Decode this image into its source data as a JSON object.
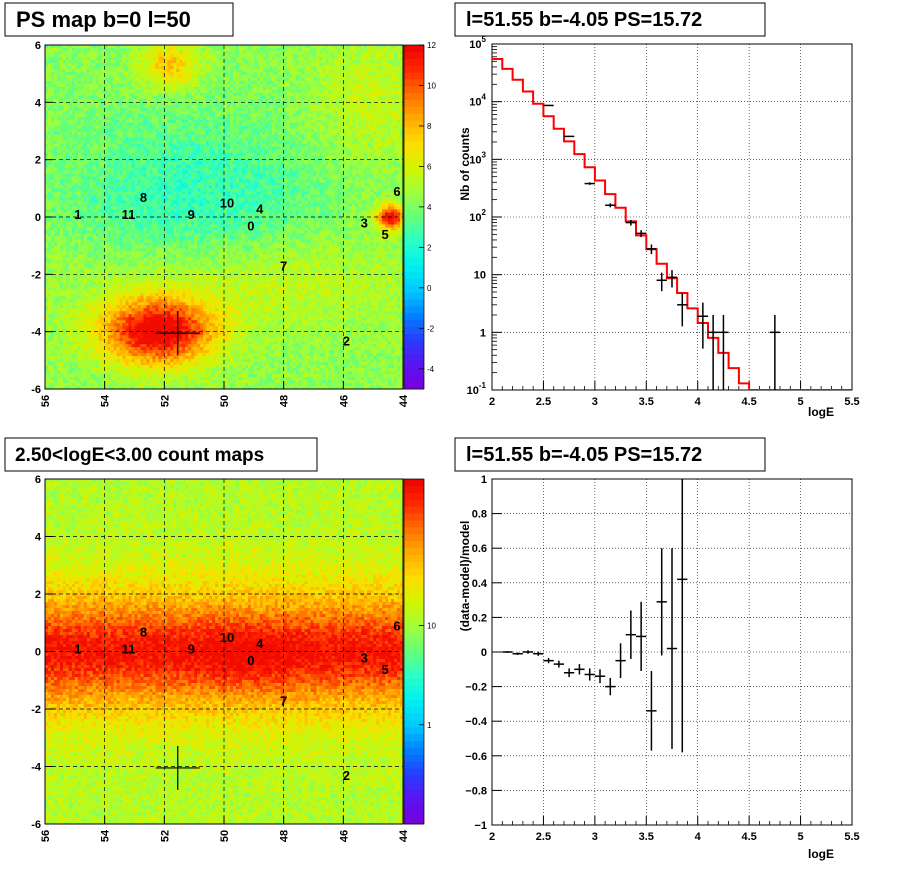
{
  "panels": {
    "ps_map": {
      "title": "PS map b=0 l=50",
      "x_ticks": [
        "56",
        "54",
        "52",
        "50",
        "48",
        "46",
        "44"
      ],
      "y_ticks": [
        "6",
        "4",
        "2",
        "0",
        "-2",
        "-4",
        "-6"
      ],
      "colorbar_ticks": [
        "12",
        "10",
        "8",
        "6",
        "4",
        "2",
        "0",
        "-2",
        "-4"
      ]
    },
    "spectrum": {
      "title": "l=51.55 b=-4.05 PS=15.72",
      "ylabel": "Nb of counts",
      "xlabel": "logE",
      "x_ticks": [
        "2",
        "2.5",
        "3",
        "3.5",
        "4",
        "4.5",
        "5",
        "5.5"
      ],
      "y_tick_ones": [
        "1",
        "10"
      ]
    },
    "count_map": {
      "title": "2.50<logE<3.00 count maps",
      "x_ticks": [
        "56",
        "54",
        "52",
        "50",
        "48",
        "46",
        "44"
      ],
      "y_ticks": [
        "6",
        "4",
        "2",
        "0",
        "-2",
        "-4",
        "-6"
      ],
      "colorbar_ticks": [
        "10",
        "1"
      ]
    },
    "residual": {
      "title": "l=51.55 b=-4.05 PS=15.72",
      "ylabel": "(data-model)/model",
      "xlabel": "logE",
      "x_ticks": [
        "2",
        "2.5",
        "3",
        "3.5",
        "4",
        "4.5",
        "5",
        "5.5"
      ],
      "y_ticks": [
        "1",
        "0.8",
        "0.6",
        "0.4",
        "0.2",
        "0",
        "−0.2",
        "−0.4",
        "−0.6",
        "−0.8",
        "−1"
      ]
    }
  },
  "sources": [
    {
      "label": "0",
      "l": 49.1,
      "b": -0.3
    },
    {
      "label": "1",
      "l": 54.9,
      "b": 0.1
    },
    {
      "label": "2",
      "l": 45.9,
      "b": -4.3
    },
    {
      "label": "3",
      "l": 45.3,
      "b": -0.2
    },
    {
      "label": "4",
      "l": 48.8,
      "b": 0.3
    },
    {
      "label": "5",
      "l": 44.6,
      "b": -0.6
    },
    {
      "label": "6",
      "l": 44.2,
      "b": 0.9
    },
    {
      "label": "7",
      "l": 48.0,
      "b": -1.7
    },
    {
      "label": "8",
      "l": 52.7,
      "b": 0.7
    },
    {
      "label": "9",
      "l": 51.1,
      "b": 0.1
    },
    {
      "label": "10",
      "l": 49.9,
      "b": 0.5
    },
    {
      "label": "11",
      "l": 53.2,
      "b": 0.1
    }
  ],
  "colors": {
    "model_line": "#ff0000",
    "data_points": "#000000",
    "grid": "#000000"
  },
  "chart_data": [
    {
      "type": "heatmap",
      "title": "PS map b=0 l=50",
      "xlabel": "",
      "ylabel": "",
      "xlim": [
        56,
        44
      ],
      "ylim": [
        -6,
        6
      ],
      "zlim": [
        -5,
        12
      ],
      "grid": true,
      "marker": {
        "l": 51.55,
        "b": -4.05
      }
    },
    {
      "type": "line",
      "title": "l=51.55 b=-4.05 PS=15.72",
      "xlabel": "logE",
      "ylabel": "Nb of counts",
      "xlim": [
        2,
        5.5
      ],
      "ylim": [
        0.1,
        100000
      ],
      "y_scale": "log",
      "grid": true,
      "series": [
        {
          "x": [
            2.05,
            2.15,
            2.25,
            2.35,
            2.45,
            2.55,
            2.65,
            2.75,
            2.85,
            2.95,
            3.05,
            3.15,
            3.25,
            3.35,
            3.45,
            3.55,
            3.65,
            3.75,
            3.85,
            3.95,
            4.05,
            4.15,
            4.25,
            4.35,
            4.45,
            4.55,
            4.65,
            4.75,
            4.85,
            4.95,
            5.05,
            5.15,
            5.25,
            5.35,
            5.45
          ],
          "values": [
            55000,
            37000,
            24000,
            15000,
            9200,
            5600,
            3400,
            2050,
            1230,
            730,
            430,
            250,
            145,
            84,
            48,
            27.5,
            15.5,
            8.7,
            4.8,
            2.6,
            1.45,
            0.8,
            0.44,
            0.24,
            0.13,
            0.1,
            0.1,
            0.1,
            0.1,
            0.1,
            0.1,
            0.1,
            0.1,
            0.1,
            0.1
          ]
        },
        {
          "x": [
            2.55,
            2.75,
            2.95,
            3.15,
            3.35,
            3.45,
            3.55,
            3.65,
            3.75,
            3.85,
            4.05,
            4.15,
            4.25,
            4.75
          ],
          "values": [
            8600,
            2500,
            380,
            160,
            80,
            52,
            28,
            8,
            9,
            3,
            1.9,
            1,
            1,
            1
          ]
        }
      ]
    },
    {
      "type": "heatmap",
      "title": "2.50<logE<3.00 count maps",
      "xlabel": "",
      "ylabel": "",
      "xlim": [
        56,
        44
      ],
      "ylim": [
        -6,
        6
      ],
      "z_scale": "log",
      "zlim": [
        0.1,
        300
      ],
      "grid": true,
      "marker": {
        "l": 51.55,
        "b": -4.05
      }
    },
    {
      "type": "scatter",
      "title": "l=51.55 b=-4.05 PS=15.72",
      "xlabel": "logE",
      "ylabel": "(data-model)/model",
      "xlim": [
        2,
        5.5
      ],
      "ylim": [
        -1,
        1
      ],
      "grid": true,
      "series": [
        {
          "x": [
            2.15,
            2.25,
            2.35,
            2.45,
            2.55,
            2.65,
            2.75,
            2.85,
            2.95,
            3.05,
            3.15,
            3.25,
            3.35,
            3.45,
            3.55,
            3.65,
            3.75,
            3.85
          ],
          "values": [
            0.0,
            -0.01,
            0.0,
            -0.01,
            -0.05,
            -0.07,
            -0.12,
            -0.1,
            -0.13,
            -0.14,
            -0.2,
            -0.05,
            0.1,
            0.09,
            -0.34,
            0.29,
            0.02,
            0.42
          ],
          "errors": [
            0.005,
            0.007,
            0.01,
            0.012,
            0.015,
            0.02,
            0.025,
            0.03,
            0.035,
            0.04,
            0.05,
            0.1,
            0.14,
            0.2,
            0.23,
            0.31,
            0.58,
            1.0
          ]
        }
      ]
    }
  ]
}
